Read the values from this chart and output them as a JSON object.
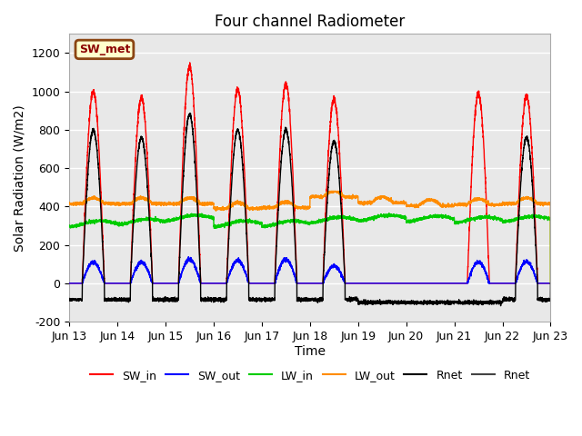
{
  "title": "Four channel Radiometer",
  "xlabel": "Time",
  "ylabel": "Solar Radiation (W/m2)",
  "ylim": [
    -200,
    1300
  ],
  "yticks": [
    -200,
    0,
    200,
    400,
    600,
    800,
    1000,
    1200
  ],
  "annotation_text": "SW_met",
  "annotation_box_color": "#ffffcc",
  "annotation_border_color": "#8B4513",
  "annotation_text_color": "#8B0000",
  "bg_color": "#e8e8e8",
  "x_tick_labels": [
    "Jun 13",
    "Jun 14",
    "Jun 15",
    "Jun 16",
    "Jun 17",
    "Jun 18",
    "Jun 19",
    "Jun 20",
    "Jun 21",
    "Jun 22",
    "Jun 23"
  ],
  "x_tick_positions": [
    0,
    1,
    2,
    3,
    4,
    5,
    6,
    7,
    8,
    9,
    10
  ],
  "sw_in_peaks": [
    1000,
    970,
    1130,
    1010,
    1040,
    960,
    0,
    0,
    985,
    975
  ],
  "sw_out_peaks": [
    110,
    110,
    125,
    120,
    125,
    90,
    0,
    0,
    110,
    115
  ],
  "lw_in_base": [
    310,
    320,
    340,
    310,
    310,
    330,
    340,
    335,
    330,
    335
  ],
  "lw_out_base": [
    415,
    415,
    415,
    390,
    395,
    450,
    420,
    405,
    410,
    415
  ],
  "rnet_day_peaks": [
    800,
    760,
    880,
    800,
    800,
    740,
    0,
    0,
    780,
    760
  ],
  "rnet_night": -85,
  "day_start": 0.27,
  "day_end": 0.73,
  "sw_color": "#ff0000",
  "sw_out_color": "#0000ff",
  "lw_in_color": "#00cc00",
  "lw_out_color": "#ff8c00",
  "rnet_color": "#000000",
  "rnet2_color": "#444444"
}
